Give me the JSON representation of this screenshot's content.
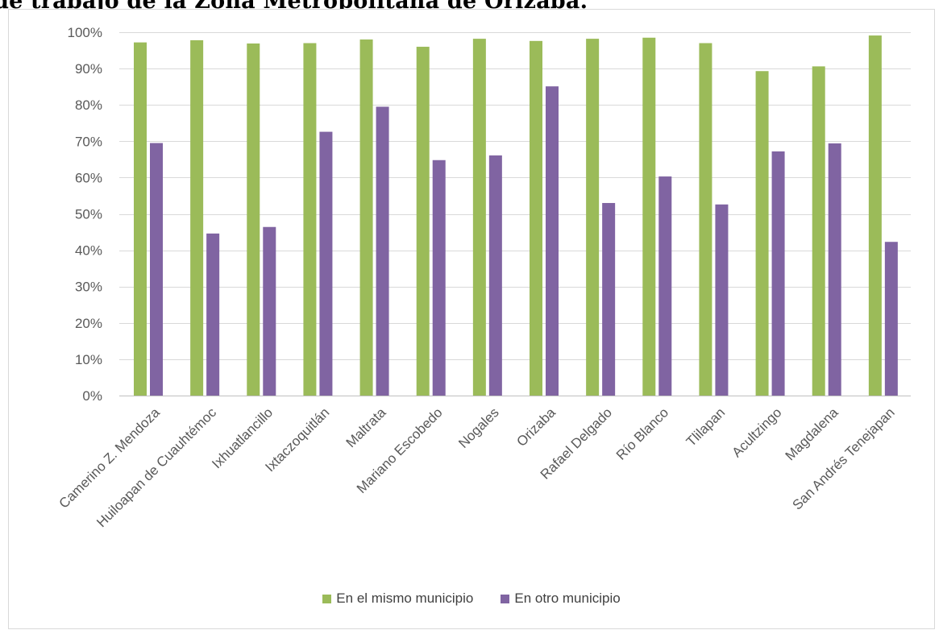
{
  "heading": "de trabajo de la Zona Metropolitana de Orizaba.",
  "chart_data": {
    "type": "bar",
    "title": "",
    "xlabel": "",
    "ylabel": "",
    "ylim": [
      0,
      100
    ],
    "ytick_values": [
      0,
      10,
      20,
      30,
      40,
      50,
      60,
      70,
      80,
      90,
      100
    ],
    "yticks": [
      "0%",
      "10%",
      "20%",
      "30%",
      "40%",
      "50%",
      "60%",
      "70%",
      "80%",
      "90%",
      "100%"
    ],
    "grid": true,
    "legend_position": "bottom",
    "categories": [
      "Camerino Z. Mendoza",
      "Huiloapan de Cuauhtémoc",
      "Ixhuatlancillo",
      "Ixtaczoquitlán",
      "Maltrata",
      "Mariano Escobedo",
      "Nogales",
      "Orizaba",
      "Rafael Delgado",
      "Río Blanco",
      "Tlilapan",
      "Acultzingo",
      "Magdalena",
      "San Andrés Tenejapan"
    ],
    "series": [
      {
        "name": "En el mismo municipio",
        "color": "#9bbb59",
        "values": [
          97.2,
          97.8,
          96.9,
          97.0,
          98.0,
          96.0,
          98.2,
          97.6,
          98.2,
          98.5,
          97.0,
          89.3,
          90.6,
          99.1
        ]
      },
      {
        "name": "En otro municipio",
        "color": "#8064a2",
        "values": [
          69.5,
          44.6,
          46.4,
          72.6,
          79.5,
          64.8,
          66.1,
          85.1,
          53.0,
          60.3,
          52.6,
          67.2,
          69.4,
          42.3
        ]
      }
    ]
  }
}
